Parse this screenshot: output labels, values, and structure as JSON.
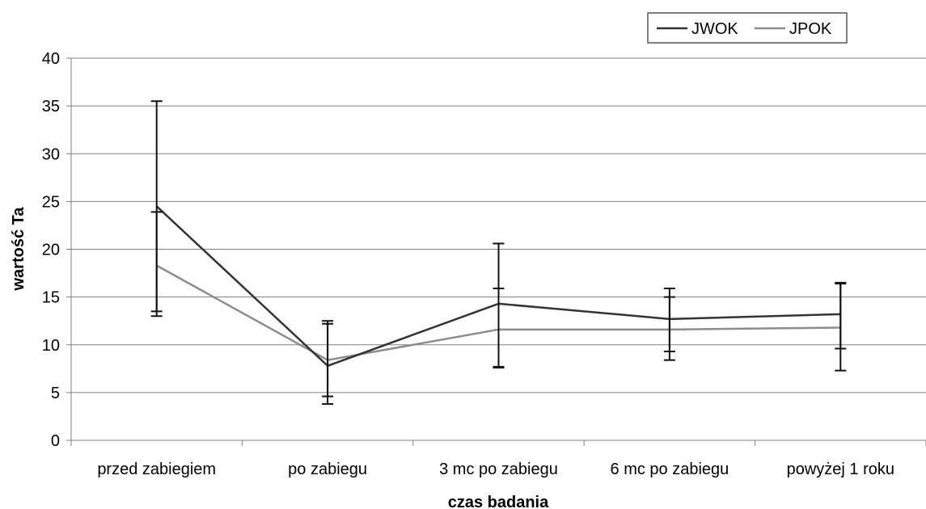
{
  "chart_data": {
    "type": "line",
    "categories": [
      "przed zabiegiem",
      "po zabiegu",
      "3 mc po zabiegu",
      "6 mc po zabiegu",
      "powyżej 1 roku"
    ],
    "series": [
      {
        "name": "JWOK",
        "color": "#333333",
        "values": [
          24.5,
          7.8,
          14.3,
          12.7,
          13.2
        ],
        "error_low": [
          13.5,
          3.8,
          7.6,
          9.3,
          9.6
        ],
        "error_high": [
          35.5,
          12.5,
          20.6,
          15.9,
          16.5
        ]
      },
      {
        "name": "JPOK",
        "color": "#8c8c8c",
        "values": [
          18.3,
          8.4,
          11.6,
          11.6,
          11.8
        ],
        "error_low": [
          13.0,
          4.6,
          7.7,
          8.4,
          7.3
        ],
        "error_high": [
          23.9,
          12.2,
          15.9,
          15.0,
          16.4
        ]
      }
    ],
    "title": "",
    "xlabel": "czas badania",
    "ylabel": "wartość Ta",
    "ylim": [
      0,
      40
    ],
    "yticks": [
      0,
      5,
      10,
      15,
      20,
      25,
      30,
      35,
      40
    ],
    "grid": true,
    "legend": "top-right"
  }
}
